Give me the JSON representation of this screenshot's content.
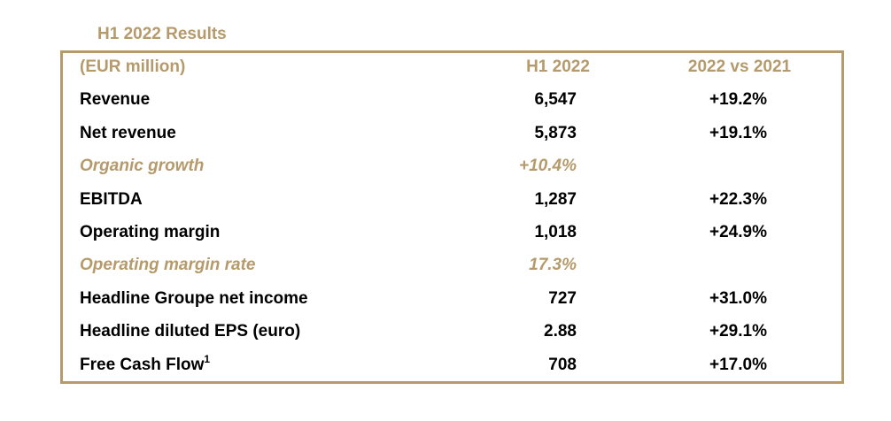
{
  "header": {
    "title": "H1 2022 Results"
  },
  "table": {
    "columns": [
      "(EUR million)",
      "H1 2022",
      "2022 vs 2021"
    ],
    "rows": [
      [
        "Revenue",
        "6,547",
        "+19.2%"
      ],
      [
        "Net revenue",
        "5,873",
        "+19.1%"
      ],
      [
        "Organic growth",
        "+10.4%"
      ],
      [
        "EBITDA",
        "1,287",
        "+22.3%"
      ],
      [
        "Operating margin",
        "1,018",
        "+24.9%"
      ],
      [
        "Operating margin rate",
        "17.3%"
      ],
      [
        "Headline Groupe net income",
        "727",
        "+31.0%"
      ],
      [
        "Headline diluted EPS (euro)",
        "2.88",
        "+29.1%"
      ],
      [
        "Free Cash Flow",
        "708",
        "+17.0%"
      ]
    ],
    "footnote_mark": {
      "row": 8,
      "text": "1"
    }
  }
}
